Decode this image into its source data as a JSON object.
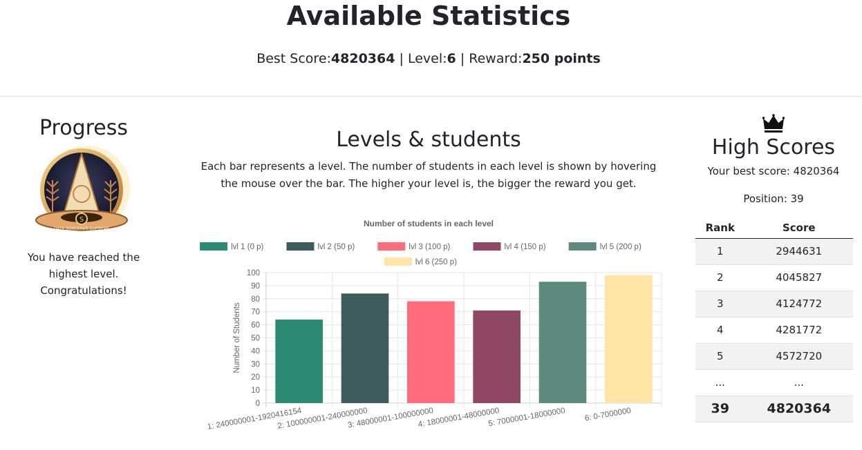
{
  "header": {
    "title": "Available Statistics",
    "best_score_label": "Best Score:",
    "best_score": "4820364",
    "sep": "|",
    "level_label": "Level:",
    "level": "6",
    "reward_label": "Reward:",
    "reward": "250 points"
  },
  "progress": {
    "title": "Progress",
    "badge_text": "DATA SORCERER SUPREME",
    "badge_letter": "S",
    "message": "You have reached the highest level. Congratulations!"
  },
  "levels": {
    "title": "Levels & students",
    "description": "Each bar represents a level. The number of students in each level is shown by hovering the mouse over the bar. The higher your level is, the bigger the reward you get."
  },
  "high_scores": {
    "title": "High Scores",
    "best_line": "Your best score: 4820364",
    "position_line": "Position: 39",
    "col_rank": "Rank",
    "col_score": "Score",
    "rows": [
      {
        "rank": "1",
        "score": "2944631"
      },
      {
        "rank": "2",
        "score": "4045827"
      },
      {
        "rank": "3",
        "score": "4124772"
      },
      {
        "rank": "4",
        "score": "4281772"
      },
      {
        "rank": "5",
        "score": "4572720"
      },
      {
        "rank": "...",
        "score": "..."
      },
      {
        "rank": "39",
        "score": "4820364"
      }
    ]
  },
  "chart_data": {
    "type": "bar",
    "title": "Number of students in each level",
    "xlabel": "",
    "ylabel": "Number of Students",
    "ylim": [
      0,
      100
    ],
    "yticks": [
      0,
      10,
      20,
      30,
      40,
      50,
      60,
      70,
      80,
      90,
      100
    ],
    "grid": true,
    "legend_position": "top",
    "categories": [
      "1: 240000001-1920416154",
      "2: 100000001-240000000",
      "3: 48000001-100000000",
      "4: 18000001-48000000",
      "5: 7000001-18000000",
      "6: 0-7000000"
    ],
    "series": [
      {
        "name": "lvl 1 (0 p)",
        "values": [
          64,
          null,
          null,
          null,
          null,
          null
        ],
        "color": "#2e8b73"
      },
      {
        "name": "lvl 2 (50 p)",
        "values": [
          null,
          84,
          null,
          null,
          null,
          null
        ],
        "color": "#3e5b5f"
      },
      {
        "name": "lvl 3 (100 p)",
        "values": [
          null,
          null,
          78,
          null,
          null,
          null
        ],
        "color": "#ff6b7a"
      },
      {
        "name": "lvl 4 (150 p)",
        "values": [
          null,
          null,
          null,
          71,
          null,
          null
        ],
        "color": "#8e4866"
      },
      {
        "name": "lvl 5 (200 p)",
        "values": [
          null,
          null,
          null,
          null,
          93,
          null
        ],
        "color": "#5d897e"
      },
      {
        "name": "lvl 6 (250 p)",
        "values": [
          null,
          null,
          null,
          null,
          null,
          98
        ],
        "color": "#ffe4a6"
      }
    ]
  }
}
